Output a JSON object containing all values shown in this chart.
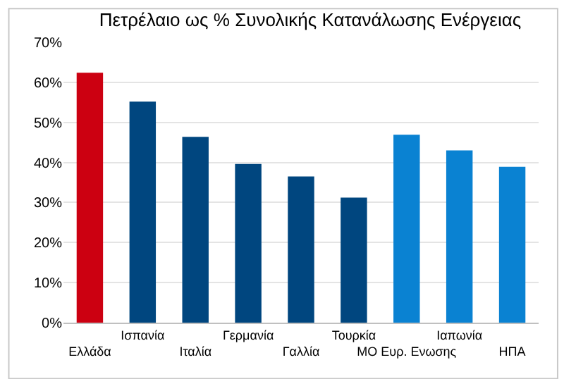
{
  "chart_data": {
    "type": "bar",
    "title": "Πετρέλαιο ως % Συνολικής Κατανάλωσης Ενέργειας",
    "categories": [
      "Ελλάδα",
      "Ισπανία",
      "Ιταλία",
      "Γερμανία",
      "Γαλλία",
      "Τουρκία",
      "ΜΟ Ευρ. Ενωσης",
      "Ιαπωνία",
      "ΗΠΑ"
    ],
    "values": [
      62.4,
      55.2,
      46.4,
      39.6,
      36.5,
      31.2,
      46.9,
      43,
      38.9
    ],
    "colors": [
      "#cc0011",
      "#00467f",
      "#00467f",
      "#00467f",
      "#00467f",
      "#00467f",
      "#0a82d2",
      "#0a82d2",
      "#0a82d2"
    ],
    "ylim": [
      0,
      70
    ],
    "yticks": [
      {
        "value": 0,
        "label": "0%"
      },
      {
        "value": 10,
        "label": "10%"
      },
      {
        "value": 20,
        "label": "20%"
      },
      {
        "value": 30,
        "label": "30%"
      },
      {
        "value": 40,
        "label": "40%"
      },
      {
        "value": 50,
        "label": "50%"
      },
      {
        "value": 60,
        "label": "60%"
      },
      {
        "value": 70,
        "label": "70%"
      }
    ],
    "grid": "y",
    "legend": false
  }
}
